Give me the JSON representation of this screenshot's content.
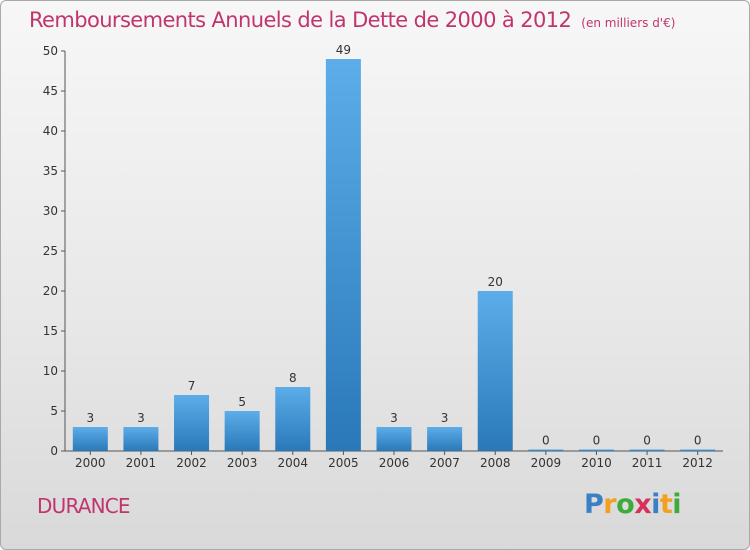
{
  "chart_data": {
    "type": "bar",
    "title": "Remboursements Annuels de la Dette de 2000 à 2012",
    "unit": "(en milliers d'€)",
    "categories": [
      "2000",
      "2001",
      "2002",
      "2003",
      "2004",
      "2005",
      "2006",
      "2007",
      "2008",
      "2009",
      "2010",
      "2011",
      "2012"
    ],
    "values": [
      3,
      3,
      7,
      5,
      8,
      49,
      3,
      3,
      20,
      0,
      0,
      0,
      0
    ],
    "ylim": [
      0,
      50
    ],
    "yticks": [
      0,
      5,
      10,
      15,
      20,
      25,
      30,
      35,
      40,
      45,
      50
    ],
    "grid": false,
    "legend": "none",
    "bar_color": "#3f95d6",
    "bar_color_light": "#5cadea",
    "bar_color_dark": "#2a78b8"
  },
  "footer": {
    "commune": "DURANCE",
    "logo_letters": [
      "P",
      "r",
      "o",
      "x",
      "i",
      "t",
      "i"
    ],
    "logo_colors": [
      "#3c7fc4",
      "#f2a01e",
      "#3faa3c",
      "#d8315b",
      "#3c7fc4",
      "#f2a01e",
      "#3faa3c"
    ]
  },
  "colors": {
    "title": "#c1356e",
    "axis": "#333333"
  }
}
